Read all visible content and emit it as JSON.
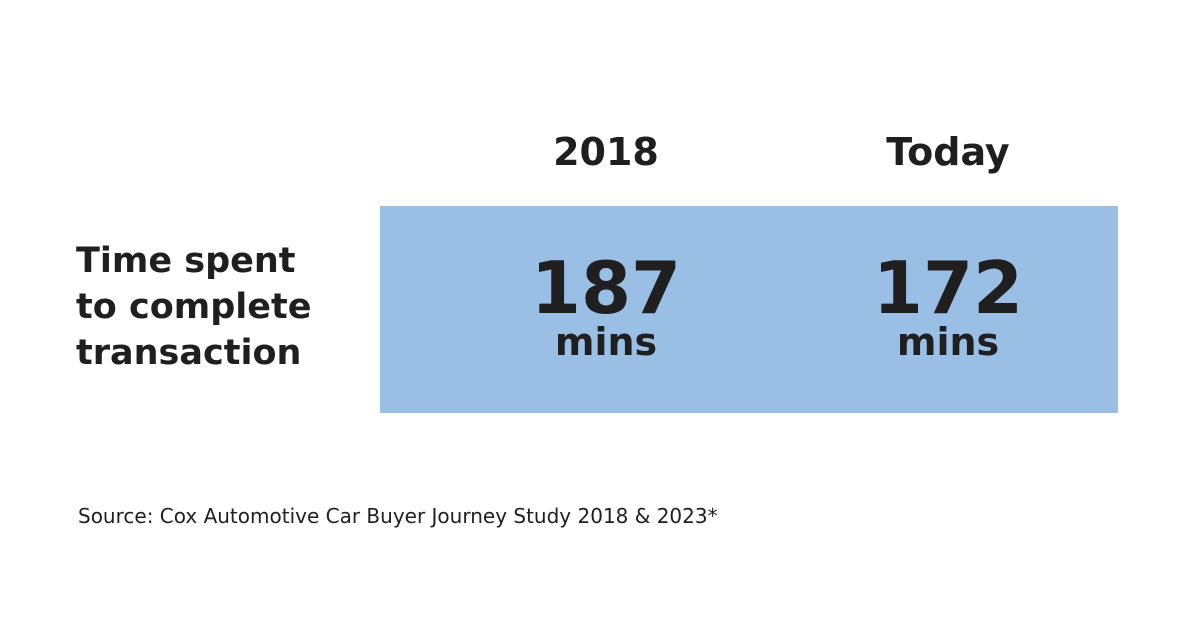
{
  "chart_data": {
    "type": "table",
    "columns": [
      "2018",
      "Today"
    ],
    "row_label_lines": [
      "Time spent",
      "to complete",
      "transaction"
    ],
    "values": [
      187,
      172
    ],
    "unit": "mins",
    "highlight_color": "#99bfe4"
  },
  "source": "Source: Cox Automotive Car Buyer Journey Study 2018 & 2023*"
}
